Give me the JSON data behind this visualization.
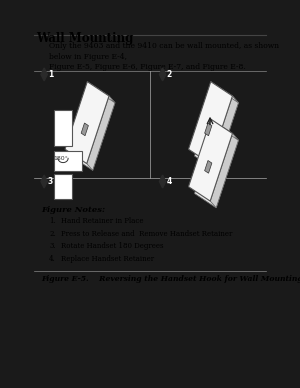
{
  "bg_color": "#ffffff",
  "outer_bg": "#1a1a1a",
  "page_bg": "#f0f0f0",
  "content_bg": "#ffffff",
  "title": "Wall Mounting",
  "title_underline": true,
  "body_text": "Only the 9403 and the 9410 can be wall mounted, as shown below in Figure E-4,\nFigure E-5, Figure E-6, Figure E-7, and Figure E-8.",
  "figure_notes_title": "Figure Notes:",
  "figure_notes": [
    "Hand Retainer in Place",
    "Press to Release and  Remove Handset Retainer",
    "Rotate Handset 180 Degrees",
    "Replace Handset Retainer"
  ],
  "figure_caption": "Figure E-5.    Reversing the Handset Hook for Wall Mounting",
  "quadrant_numbers": [
    "1",
    "2",
    "3",
    "4"
  ],
  "diamond_color": "#2a2a2a"
}
